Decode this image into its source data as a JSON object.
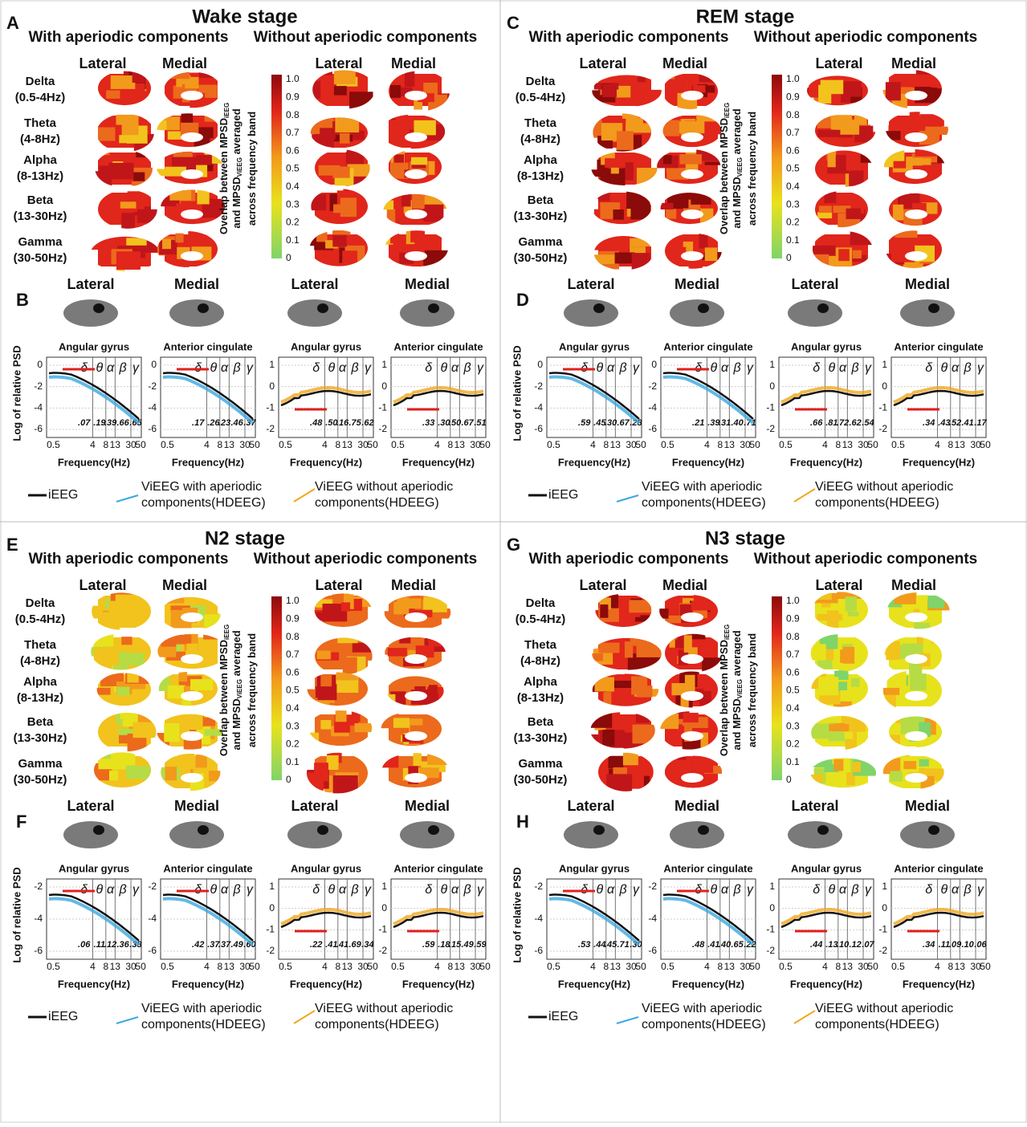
{
  "panels": [
    {
      "letter": "A",
      "title": "Wake stage",
      "with": "With aperiodic components",
      "without": "Without aperiodic components",
      "views": [
        "Lateral",
        "Medial"
      ],
      "bands": [
        [
          "Delta",
          "(0.5-4Hz)"
        ],
        [
          "Theta",
          "(4-8Hz)"
        ],
        [
          "Alpha",
          "(8-13Hz)"
        ],
        [
          "Beta",
          "(13-30Hz)"
        ],
        [
          "Gamma",
          "(30-50Hz)"
        ]
      ],
      "colorbar": {
        "label": [
          "Overlap between MPSD",
          "iEEG",
          "and MPSD",
          "ViEEG",
          " averaged",
          "across frequency band"
        ],
        "ticks": [
          "1.0",
          "0.9",
          "0.8",
          "0.7",
          "0.6",
          "0.5",
          "0.4",
          "0.3",
          "0.2",
          "0.1",
          "0"
        ]
      },
      "letter2": "B",
      "psd_views": [
        "Lateral",
        "Medial",
        "Lateral",
        "Medial"
      ],
      "ylabel": "Log of relative PSD",
      "xlabel": "Frequency(Hz)",
      "greek": [
        "δ",
        "θ",
        "α",
        "β",
        "γ"
      ],
      "plots": [
        {
          "title": "Angular gyrus",
          "yticks": [
            "0",
            "-2",
            "-4",
            "-6"
          ],
          "xticks": [
            "0.5",
            "4",
            "8",
            "13",
            "30",
            "50"
          ],
          "overlaps": [
            ".07",
            ".19",
            ".39",
            ".66",
            ".65"
          ]
        },
        {
          "title": "Anterior cingulate",
          "yticks": [
            "0",
            "-2",
            "-4",
            "-6"
          ],
          "xticks": [
            "0.5",
            "4",
            "8",
            "13",
            "30",
            "50"
          ],
          "overlaps": [
            ".17",
            ".26",
            ".23",
            ".46",
            ".37"
          ]
        },
        {
          "title": "Angular gyrus",
          "yticks": [
            "1",
            "0",
            "-1",
            "-2"
          ],
          "xticks": [
            "0.5",
            "4",
            "8",
            "13",
            "30",
            "50"
          ],
          "overlaps": [
            ".48",
            ".50",
            ".16",
            ".75",
            ".62"
          ]
        },
        {
          "title": "Anterior cingulate",
          "yticks": [
            "1",
            "0",
            "-1",
            "-2"
          ],
          "xticks": [
            "0.5",
            "4",
            "8",
            "13",
            "30",
            "50"
          ],
          "overlaps": [
            ".33",
            ".30",
            ".50",
            ".67",
            ".51"
          ]
        }
      ],
      "legend": [
        [
          "iEEG"
        ],
        [
          "ViEEG with aperiodic",
          "components(HDEEG)"
        ],
        [
          "ViEEG without aperiodic",
          "components(HDEEG)"
        ]
      ]
    },
    {
      "letter": "C",
      "title": "REM stage",
      "with": "With aperiodic components",
      "without": "Without aperiodic components",
      "views": [
        "Lateral",
        "Medial"
      ],
      "bands": [
        [
          "Delta",
          "(0.5-4Hz)"
        ],
        [
          "Theta",
          "(4-8Hz)"
        ],
        [
          "Alpha",
          "(8-13Hz)"
        ],
        [
          "Beta",
          "(13-30Hz)"
        ],
        [
          "Gamma",
          "(30-50Hz)"
        ]
      ],
      "colorbar": {
        "label": [
          "Overlap between MPSD",
          "iEEG",
          "and MPSD",
          "ViEEG",
          " averaged",
          "across frequency band"
        ],
        "ticks": [
          "1.0",
          "0.9",
          "0.8",
          "0.7",
          "0.6",
          "0.5",
          "0.4",
          "0.3",
          "0.2",
          "0.1",
          "0"
        ]
      },
      "letter2": "D",
      "psd_views": [
        "Lateral",
        "Medial",
        "Lateral",
        "Medial"
      ],
      "ylabel": "Log of relative PSD",
      "xlabel": "Frequency(Hz)",
      "greek": [
        "δ",
        "θ",
        "α",
        "β",
        "γ"
      ],
      "plots": [
        {
          "title": "Angular gyrus",
          "yticks": [
            "0",
            "-2",
            "-4",
            "-6"
          ],
          "xticks": [
            "0.5",
            "4",
            "8",
            "13",
            "30",
            "50"
          ],
          "overlaps": [
            ".59",
            ".45",
            ".30",
            ".67",
            ".28"
          ]
        },
        {
          "title": "Anterior cingulate",
          "yticks": [
            "0",
            "-2",
            "-4",
            "-6"
          ],
          "xticks": [
            "0.5",
            "4",
            "8",
            "13",
            "30",
            "50"
          ],
          "overlaps": [
            ".21",
            ".39",
            ".31",
            ".40",
            ".71"
          ]
        },
        {
          "title": "Angular gyrus",
          "yticks": [
            "1",
            "0",
            "-1",
            "-2"
          ],
          "xticks": [
            "0.5",
            "4",
            "8",
            "13",
            "30",
            "50"
          ],
          "overlaps": [
            ".66",
            ".81",
            ".72",
            ".62",
            ".54"
          ]
        },
        {
          "title": "Anterior cingulate",
          "yticks": [
            "1",
            "0",
            "-1",
            "-2"
          ],
          "xticks": [
            "0.5",
            "4",
            "8",
            "13",
            "30",
            "50"
          ],
          "overlaps": [
            ".34",
            ".43",
            ".52",
            ".41",
            ".17"
          ]
        }
      ],
      "legend": [
        [
          "iEEG"
        ],
        [
          "ViEEG with aperiodic",
          "components(HDEEG)"
        ],
        [
          "ViEEG without aperiodic",
          "components(HDEEG)"
        ]
      ]
    },
    {
      "letter": "E",
      "title": "N2 stage",
      "with": "With aperiodic components",
      "without": "Without aperiodic components",
      "views": [
        "Lateral",
        "Medial"
      ],
      "bands": [
        [
          "Delta",
          "(0.5-4Hz)"
        ],
        [
          "Theta",
          "(4-8Hz)"
        ],
        [
          "Alpha",
          "(8-13Hz)"
        ],
        [
          "Beta",
          "(13-30Hz)"
        ],
        [
          "Gamma",
          "(30-50Hz)"
        ]
      ],
      "colorbar": {
        "label": [
          "Overlap between MPSD",
          "iEEG",
          "and MPSD",
          "ViEEG",
          " averaged",
          "across frequency band"
        ],
        "ticks": [
          "1.0",
          "0.9",
          "0.8",
          "0.7",
          "0.6",
          "0.5",
          "0.4",
          "0.3",
          "0.2",
          "0.1",
          "0"
        ]
      },
      "letter2": "F",
      "psd_views": [
        "Lateral",
        "Medial",
        "Lateral",
        "Medial"
      ],
      "ylabel": "Log of relative PSD",
      "xlabel": "Frequency(Hz)",
      "greek": [
        "δ",
        "θ",
        "α",
        "β",
        "γ"
      ],
      "plots": [
        {
          "title": "Angular gyrus",
          "yticks": [
            "-2",
            "-4",
            "-6"
          ],
          "xticks": [
            "0.5",
            "4",
            "8",
            "13",
            "30",
            "50"
          ],
          "overlaps": [
            ".06",
            ".11",
            ".12",
            ".36",
            ".38"
          ]
        },
        {
          "title": "Anterior cingulate",
          "yticks": [
            "-2",
            "-4",
            "-6"
          ],
          "xticks": [
            "0.5",
            "4",
            "8",
            "13",
            "30",
            "50"
          ],
          "overlaps": [
            ".42",
            ".37",
            ".37",
            ".49",
            ".60"
          ]
        },
        {
          "title": "Angular gyrus",
          "yticks": [
            "1",
            "0",
            "-1",
            "-2"
          ],
          "xticks": [
            "0.5",
            "4",
            "8",
            "13",
            "30",
            "50"
          ],
          "overlaps": [
            ".22",
            ".41",
            ".41",
            ".69",
            ".34"
          ]
        },
        {
          "title": "Anterior cingulate",
          "yticks": [
            "1",
            "0",
            "-1",
            "-2"
          ],
          "xticks": [
            "0.5",
            "4",
            "8",
            "13",
            "30",
            "50"
          ],
          "overlaps": [
            ".59",
            ".18",
            ".15",
            ".49",
            ".59"
          ]
        }
      ],
      "legend": [
        [
          "iEEG"
        ],
        [
          "ViEEG with aperiodic",
          "components(HDEEG)"
        ],
        [
          "ViEEG without aperiodic",
          "components(HDEEG)"
        ]
      ]
    },
    {
      "letter": "G",
      "title": "N3 stage",
      "with": "With aperiodic components",
      "without": "Without aperiodic components",
      "views": [
        "Lateral",
        "Medial"
      ],
      "bands": [
        [
          "Delta",
          "(0.5-4Hz)"
        ],
        [
          "Theta",
          "(4-8Hz)"
        ],
        [
          "Alpha",
          "(8-13Hz)"
        ],
        [
          "Beta",
          "(13-30Hz)"
        ],
        [
          "Gamma",
          "(30-50Hz)"
        ]
      ],
      "colorbar": {
        "label": [
          "Overlap between MPSD",
          "iEEG",
          "and MPSD",
          "ViEEG",
          " averaged",
          "across frequency band"
        ],
        "ticks": [
          "1.0",
          "0.9",
          "0.8",
          "0.7",
          "0.6",
          "0.5",
          "0.4",
          "0.3",
          "0.2",
          "0.1",
          "0"
        ]
      },
      "letter2": "H",
      "psd_views": [
        "Lateral",
        "Medial",
        "Lateral",
        "Medial"
      ],
      "ylabel": "Log of relative PSD",
      "xlabel": "Frequency(Hz)",
      "greek": [
        "δ",
        "θ",
        "α",
        "β",
        "γ"
      ],
      "plots": [
        {
          "title": "Angular gyrus",
          "yticks": [
            "-2",
            "-4",
            "-6"
          ],
          "xticks": [
            "0.5",
            "4",
            "8",
            "13",
            "30",
            "50"
          ],
          "overlaps": [
            ".53",
            ".44",
            ".45",
            ".71",
            ".30"
          ]
        },
        {
          "title": "Anterior cingulate",
          "yticks": [
            "-2",
            "-4",
            "-6"
          ],
          "xticks": [
            "0.5",
            "4",
            "8",
            "13",
            "30",
            "50"
          ],
          "overlaps": [
            ".48",
            ".41",
            ".40",
            ".65",
            ".22"
          ]
        },
        {
          "title": "Angular gyrus",
          "yticks": [
            "1",
            "0",
            "-1",
            "-2"
          ],
          "xticks": [
            "0.5",
            "4",
            "8",
            "13",
            "30",
            "50"
          ],
          "overlaps": [
            ".44",
            ".13",
            ".10",
            ".12",
            ".07"
          ]
        },
        {
          "title": "Anterior cingulate",
          "yticks": [
            "1",
            "0",
            "-1",
            "-2"
          ],
          "xticks": [
            "0.5",
            "4",
            "8",
            "13",
            "30",
            "50"
          ],
          "overlaps": [
            ".34",
            ".11",
            ".09",
            ".10",
            ".06"
          ]
        }
      ],
      "legend": [
        [
          "iEEG"
        ],
        [
          "ViEEG with aperiodic",
          "components(HDEEG)"
        ],
        [
          "ViEEG without aperiodic",
          "components(HDEEG)"
        ]
      ]
    }
  ]
}
